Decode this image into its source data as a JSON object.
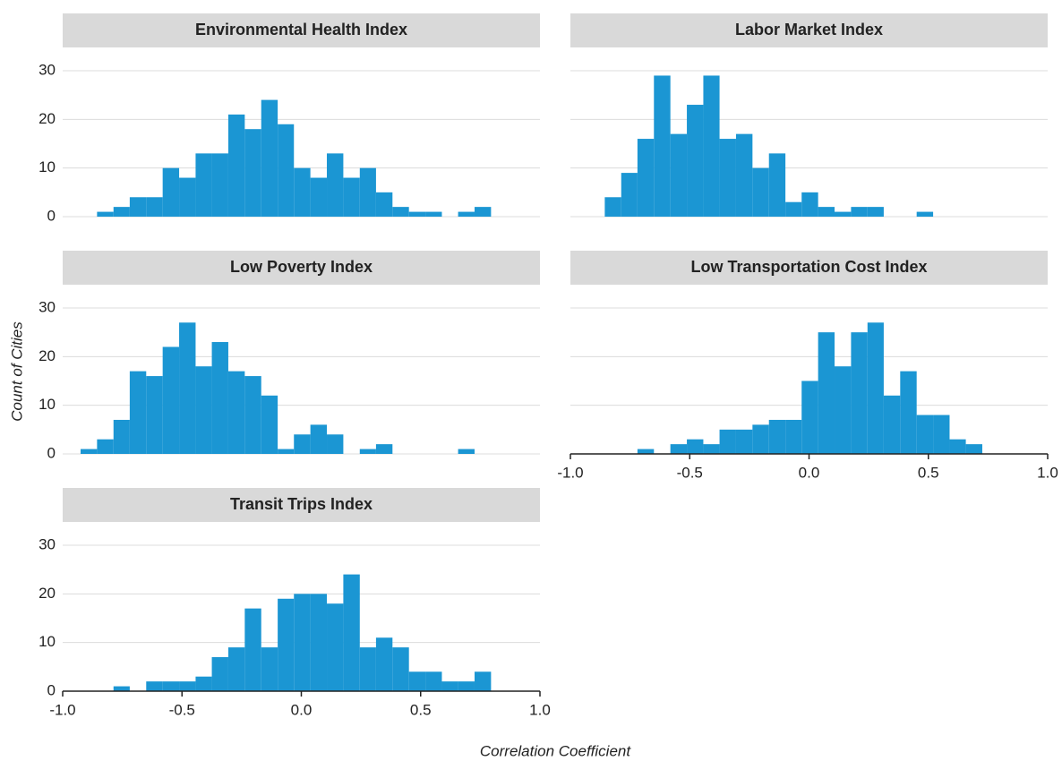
{
  "axis_labels": {
    "x": "Correlation Coefficient",
    "y": "Count of Cities"
  },
  "chart_data": [
    {
      "type": "histogram",
      "title": "Environmental Health Index",
      "color": "#1b96d3",
      "bins": [
        -0.925,
        -0.856,
        -0.787,
        -0.719,
        -0.65,
        -0.581,
        -0.512,
        -0.443,
        -0.375,
        -0.306,
        -0.237,
        -0.168,
        -0.099,
        -0.031,
        0.038,
        0.107,
        0.176,
        0.245,
        0.313,
        0.382,
        0.451,
        0.52,
        0.589,
        0.657,
        0.726,
        0.795
      ],
      "values": [
        0,
        1,
        2,
        4,
        4,
        10,
        8,
        13,
        13,
        21,
        18,
        24,
        19,
        10,
        8,
        13,
        8,
        10,
        5,
        2,
        1,
        1,
        0,
        1,
        2
      ],
      "xlim": [
        -1,
        1
      ],
      "ylim": [
        0,
        30
      ],
      "yticks": [
        0,
        10,
        20,
        30
      ],
      "grid": true
    },
    {
      "type": "histogram",
      "title": "Labor Market Index",
      "color": "#1b96d3",
      "bins": [
        -0.925,
        -0.856,
        -0.787,
        -0.719,
        -0.65,
        -0.581,
        -0.512,
        -0.443,
        -0.375,
        -0.306,
        -0.237,
        -0.168,
        -0.099,
        -0.031,
        0.038,
        0.107,
        0.176,
        0.245,
        0.313,
        0.382,
        0.451,
        0.52,
        0.589,
        0.657,
        0.726,
        0.795
      ],
      "values": [
        0,
        4,
        9,
        16,
        29,
        17,
        23,
        29,
        16,
        17,
        10,
        13,
        3,
        5,
        2,
        1,
        2,
        2,
        0,
        0,
        1,
        0,
        0,
        0,
        0
      ],
      "xlim": [
        -1,
        1
      ],
      "ylim": [
        0,
        30
      ],
      "yticks": [
        0,
        10,
        20,
        30
      ],
      "grid": true
    },
    {
      "type": "histogram",
      "title": "Low Poverty Index",
      "color": "#1b96d3",
      "bins": [
        -0.925,
        -0.856,
        -0.787,
        -0.719,
        -0.65,
        -0.581,
        -0.512,
        -0.443,
        -0.375,
        -0.306,
        -0.237,
        -0.168,
        -0.099,
        -0.031,
        0.038,
        0.107,
        0.176,
        0.245,
        0.313,
        0.382,
        0.451,
        0.52,
        0.589,
        0.657,
        0.726,
        0.795
      ],
      "values": [
        1,
        3,
        7,
        17,
        16,
        22,
        27,
        18,
        23,
        17,
        16,
        12,
        1,
        4,
        6,
        4,
        0,
        1,
        2,
        0,
        0,
        0,
        0,
        1,
        0
      ],
      "xlim": [
        -1,
        1
      ],
      "ylim": [
        0,
        30
      ],
      "yticks": [
        0,
        10,
        20,
        30
      ],
      "grid": true
    },
    {
      "type": "histogram",
      "title": "Low Transportation Cost Index",
      "color": "#1b96d3",
      "bins": [
        -0.925,
        -0.856,
        -0.787,
        -0.719,
        -0.65,
        -0.581,
        -0.512,
        -0.443,
        -0.375,
        -0.306,
        -0.237,
        -0.168,
        -0.099,
        -0.031,
        0.038,
        0.107,
        0.176,
        0.245,
        0.313,
        0.382,
        0.451,
        0.52,
        0.589,
        0.657,
        0.726,
        0.795
      ],
      "values": [
        0,
        0,
        0,
        1,
        0,
        2,
        3,
        2,
        5,
        5,
        6,
        7,
        7,
        15,
        25,
        18,
        25,
        27,
        12,
        17,
        8,
        8,
        3,
        2,
        0
      ],
      "xlim": [
        -1,
        1
      ],
      "ylim": [
        0,
        30
      ],
      "yticks": [
        0,
        10,
        20,
        30
      ],
      "grid": true,
      "xticks": [
        {
          "value": -1,
          "label": "-1.0"
        },
        -0.5,
        {
          "value": 0,
          "label": "0.0"
        },
        0.5,
        {
          "value": 1,
          "label": "1.0"
        }
      ]
    },
    {
      "type": "histogram",
      "title": "Transit Trips Index",
      "color": "#1b96d3",
      "bins": [
        -0.925,
        -0.856,
        -0.787,
        -0.719,
        -0.65,
        -0.581,
        -0.512,
        -0.443,
        -0.375,
        -0.306,
        -0.237,
        -0.168,
        -0.099,
        -0.031,
        0.038,
        0.107,
        0.176,
        0.245,
        0.313,
        0.382,
        0.451,
        0.52,
        0.589,
        0.657,
        0.726,
        0.795
      ],
      "values": [
        0,
        0,
        1,
        0,
        2,
        2,
        2,
        3,
        7,
        9,
        17,
        9,
        19,
        20,
        20,
        18,
        24,
        9,
        11,
        9,
        4,
        4,
        2,
        2,
        4
      ],
      "xlim": [
        -1,
        1
      ],
      "ylim": [
        0,
        30
      ],
      "yticks": [
        0,
        10,
        20,
        30
      ],
      "grid": true,
      "xticks": [
        {
          "value": -1,
          "label": "-1.0"
        },
        -0.5,
        {
          "value": 0,
          "label": "0.0"
        },
        0.5,
        {
          "value": 1,
          "label": "1.0"
        }
      ]
    }
  ]
}
